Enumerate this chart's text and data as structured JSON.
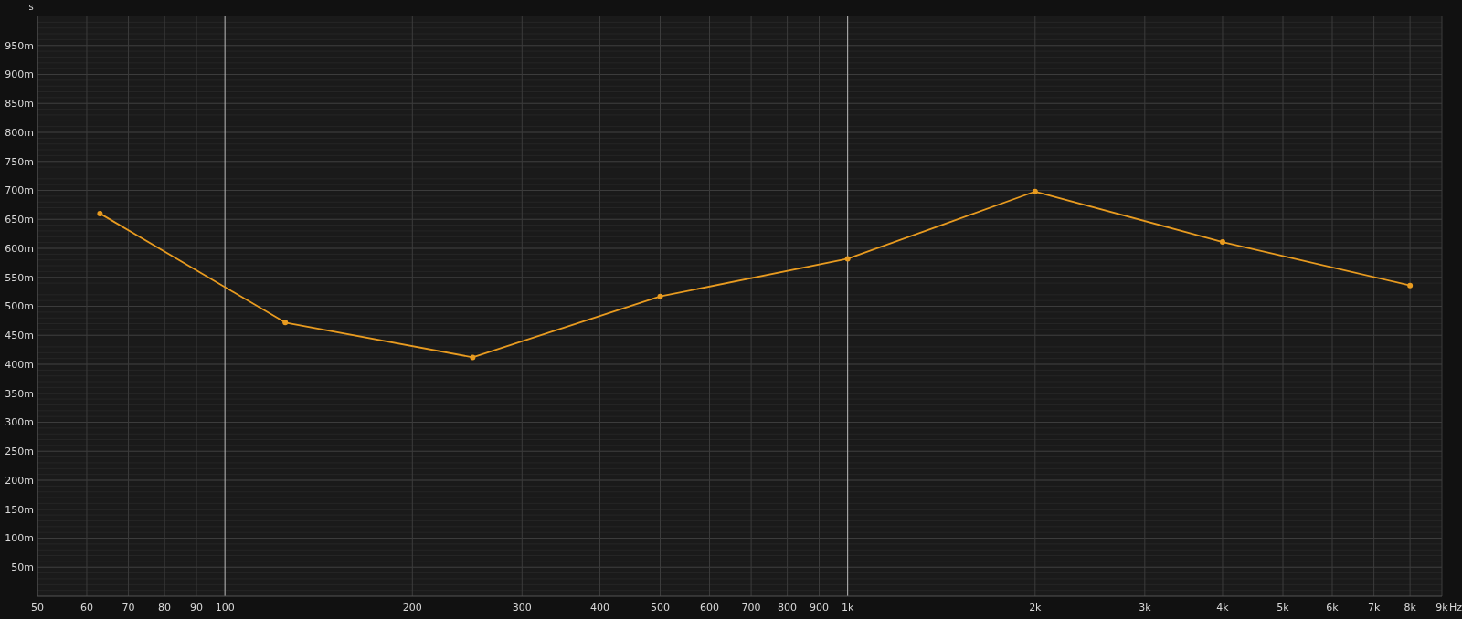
{
  "chart_data": {
    "type": "line",
    "ylabel": "s",
    "xlabel": "Hz",
    "log": "x",
    "grid": true,
    "marker": "circle",
    "x": [
      63,
      125,
      250,
      500,
      1000,
      2000,
      4000,
      8000
    ],
    "series": [
      {
        "color": "#e89b20",
        "values": [
          660,
          472,
          412,
          517,
          582,
          698,
          611,
          536
        ]
      }
    ],
    "xlim": [
      50,
      9000
    ],
    "xticks": [
      {
        "value": 50,
        "label": "50"
      },
      {
        "value": 60,
        "label": "60"
      },
      {
        "value": 70,
        "label": "70"
      },
      {
        "value": 80,
        "label": "80"
      },
      {
        "value": 90,
        "label": "90"
      },
      {
        "value": 100,
        "label": "100"
      },
      {
        "value": 200,
        "label": "200"
      },
      {
        "value": 300,
        "label": "300"
      },
      {
        "value": 400,
        "label": "400"
      },
      {
        "value": 500,
        "label": "500"
      },
      {
        "value": 600,
        "label": "600"
      },
      {
        "value": 700,
        "label": "700"
      },
      {
        "value": 800,
        "label": "800"
      },
      {
        "value": 900,
        "label": "900"
      },
      {
        "value": 1000,
        "label": "1k"
      },
      {
        "value": 2000,
        "label": "2k"
      },
      {
        "value": 3000,
        "label": "3k"
      },
      {
        "value": 4000,
        "label": "4k"
      },
      {
        "value": 5000,
        "label": "5k"
      },
      {
        "value": 6000,
        "label": "6k"
      },
      {
        "value": 7000,
        "label": "7k"
      },
      {
        "value": 8000,
        "label": "8k"
      },
      {
        "value": 9000,
        "label": "9k"
      }
    ],
    "ylim": [
      0,
      1000
    ],
    "yticks": [
      {
        "value": 50,
        "label": "50m"
      },
      {
        "value": 100,
        "label": "100m"
      },
      {
        "value": 150,
        "label": "150m"
      },
      {
        "value": 200,
        "label": "200m"
      },
      {
        "value": 250,
        "label": "250m"
      },
      {
        "value": 300,
        "label": "300m"
      },
      {
        "value": 350,
        "label": "350m"
      },
      {
        "value": 400,
        "label": "400m"
      },
      {
        "value": 450,
        "label": "450m"
      },
      {
        "value": 500,
        "label": "500m"
      },
      {
        "value": 550,
        "label": "550m"
      },
      {
        "value": 600,
        "label": "600m"
      },
      {
        "value": 650,
        "label": "650m"
      },
      {
        "value": 700,
        "label": "700m"
      },
      {
        "value": 750,
        "label": "750m"
      },
      {
        "value": 800,
        "label": "800m"
      },
      {
        "value": 850,
        "label": "850m"
      },
      {
        "value": 900,
        "label": "900m"
      },
      {
        "value": 950,
        "label": "950m"
      }
    ]
  }
}
